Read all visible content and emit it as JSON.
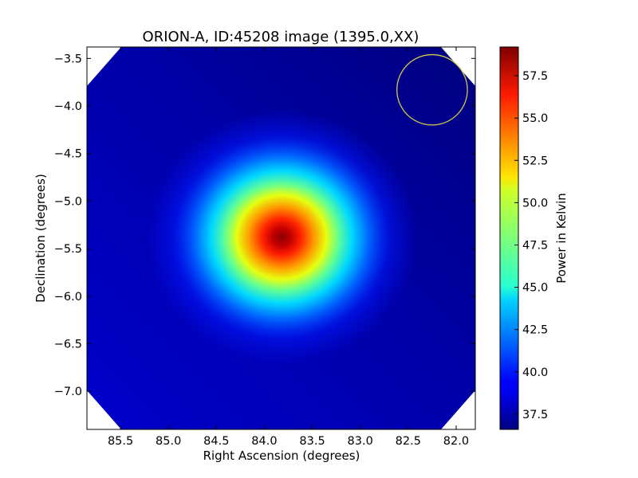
{
  "chart_data": {
    "type": "heatmap",
    "title": "ORION-A, ID:45208 image (1395.0,XX)",
    "xlabel": "Right Ascension (degrees)",
    "ylabel": "Declination (degrees)",
    "xlim": [
      85.85,
      81.8
    ],
    "ylim": [
      -7.4,
      -3.38
    ],
    "x_ticks": [
      85.5,
      85.0,
      84.5,
      84.0,
      83.5,
      83.0,
      82.5,
      82.0
    ],
    "x_tick_labels": [
      "85.5",
      "85.0",
      "84.5",
      "84.0",
      "83.5",
      "83.0",
      "82.5",
      "82.0"
    ],
    "y_ticks": [
      -3.5,
      -4.0,
      -4.5,
      -5.0,
      -5.5,
      -6.0,
      -6.5,
      -7.0
    ],
    "y_tick_labels": [
      "−3.5",
      "−4.0",
      "−4.5",
      "−5.0",
      "−5.5",
      "−6.0",
      "−6.5",
      "−7.0"
    ],
    "source_peak": {
      "ra": 83.82,
      "dec": -5.38,
      "value_k": 59.0
    },
    "background_k": 38.6,
    "beam_circle": {
      "ra": 82.25,
      "dec": -3.83,
      "radius_deg": 0.37,
      "color": "#d4c84a"
    },
    "colorbar": {
      "label": "Power in Kelvin",
      "vmin": 36.6,
      "vmax": 59.2,
      "ticks": [
        37.5,
        40.0,
        42.5,
        45.0,
        47.5,
        50.0,
        52.5,
        55.0,
        57.5
      ],
      "tick_labels": [
        "37.5",
        "40.0",
        "42.5",
        "45.0",
        "47.5",
        "50.0",
        "52.5",
        "55.0",
        "57.5"
      ],
      "colormap": "jet"
    }
  }
}
